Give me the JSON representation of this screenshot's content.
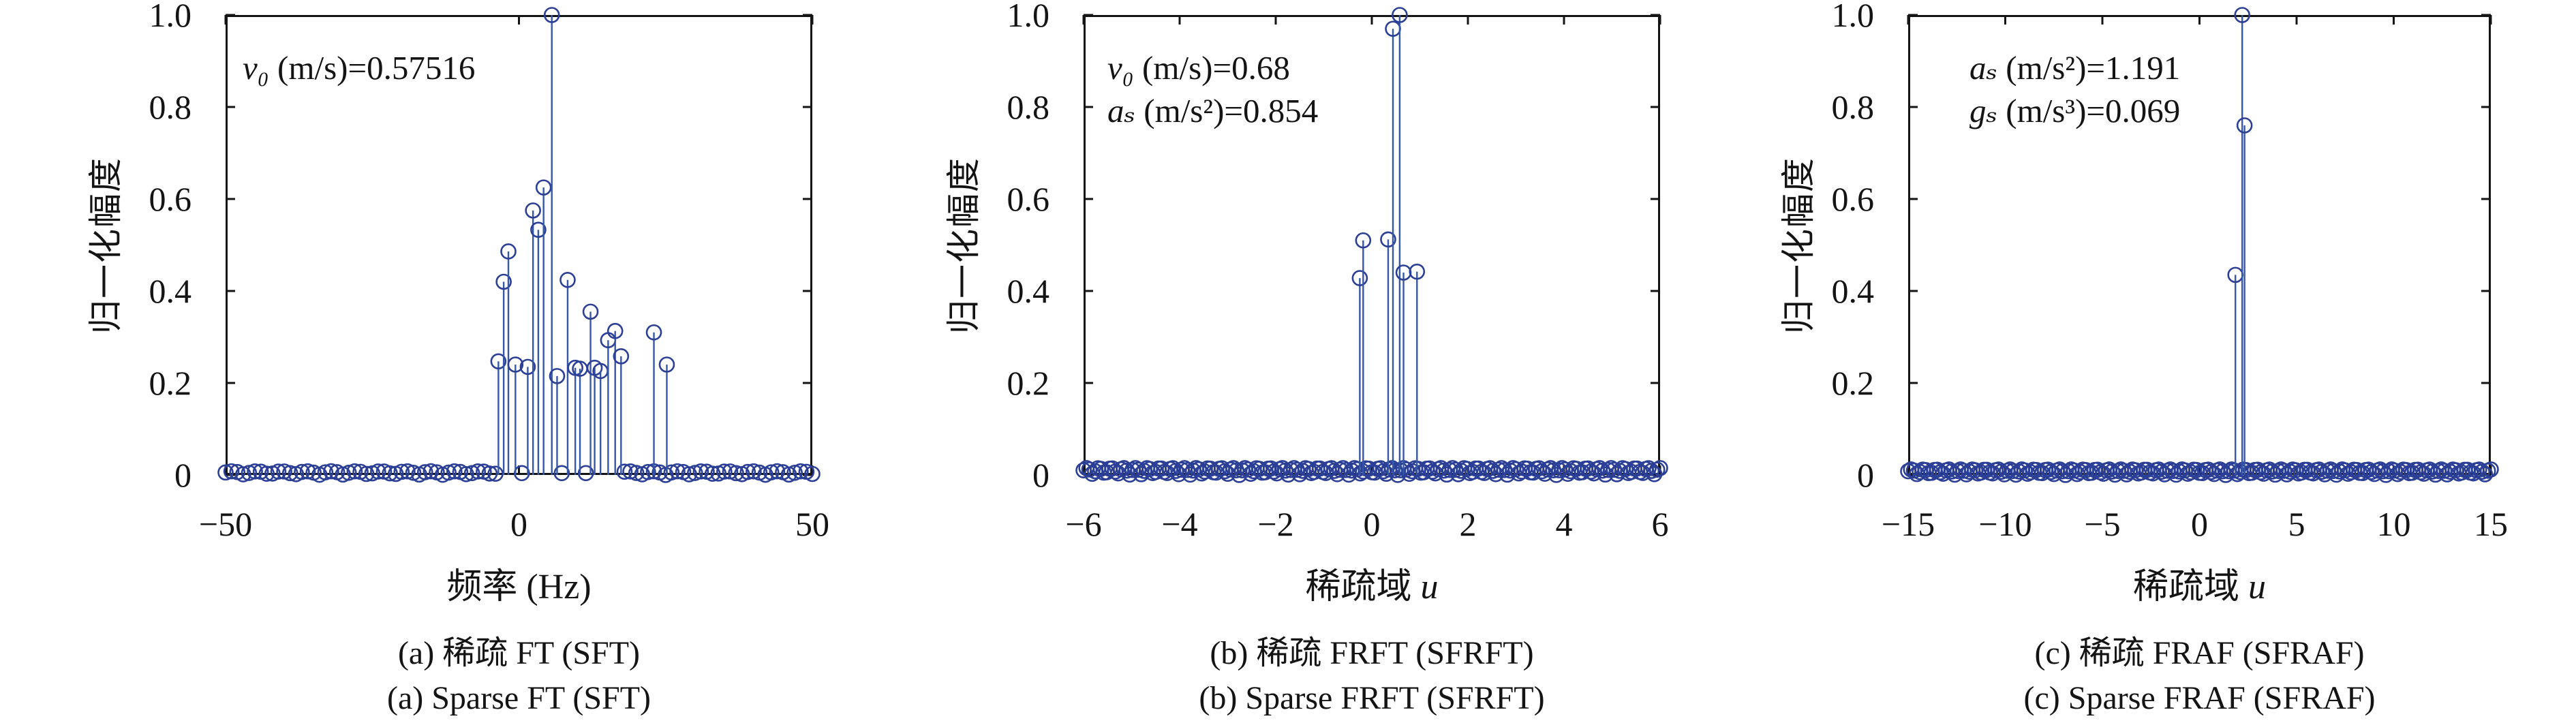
{
  "style": {
    "background": "#ffffff",
    "axis_color": "#141414",
    "text_color": "#141414",
    "stem_color": "#3656a8",
    "marker_color": "#2b3f97"
  },
  "chart_data": [
    {
      "id": "a",
      "type": "stem",
      "title_cn": "(a) 稀疏 FT (SFT)",
      "title_en": "(a) Sparse FT (SFT)",
      "xlabel": {
        "text": "频率 (Hz)",
        "var": ""
      },
      "ylabel": "归一化幅度",
      "xlim": [
        -50,
        50
      ],
      "ylim": [
        0,
        1.0
      ],
      "grid": false,
      "annotation": [
        {
          "var": "v₀",
          "rest": " (m/s)=0.57516"
        }
      ],
      "x_ticks": [
        {
          "v": -50,
          "label": "−50"
        },
        {
          "v": 0,
          "label": "0"
        },
        {
          "v": 50,
          "label": "50"
        }
      ],
      "y_ticks": [
        {
          "v": 1.0,
          "label": "1.0"
        },
        {
          "v": 0.8,
          "label": "0.8"
        },
        {
          "v": 0.6,
          "label": "0.6"
        },
        {
          "v": 0.4,
          "label": "0.4"
        },
        {
          "v": 0.2,
          "label": "0.2"
        },
        {
          "v": 0.0,
          "label": "0"
        }
      ],
      "stems": [
        [
          -3.5,
          0.247
        ],
        [
          -2.6,
          0.42
        ],
        [
          -1.8,
          0.486
        ],
        [
          -0.6,
          0.24
        ],
        [
          1.5,
          0.235
        ],
        [
          2.4,
          0.575
        ],
        [
          3.3,
          0.533
        ],
        [
          4.2,
          0.625
        ],
        [
          5.6,
          1.0
        ],
        [
          6.5,
          0.215
        ],
        [
          8.3,
          0.424
        ],
        [
          9.6,
          0.233
        ],
        [
          10.4,
          0.231
        ],
        [
          12.2,
          0.355
        ],
        [
          12.9,
          0.233
        ],
        [
          13.9,
          0.226
        ],
        [
          15.2,
          0.293
        ],
        [
          16.4,
          0.313
        ],
        [
          17.4,
          0.258
        ],
        [
          23.0,
          0.31
        ],
        [
          25.2,
          0.24
        ]
      ],
      "baseline": {
        "segments": [
          [
            -50,
            -4,
            1
          ],
          [
            18,
            50,
            1
          ]
        ],
        "points": [
          0.5,
          7.3,
          11.4
        ],
        "jitter": 0.008
      }
    },
    {
      "id": "b",
      "type": "stem",
      "title_cn": "(b) 稀疏 FRFT (SFRFT)",
      "title_en": "(b) Sparse FRFT (SFRFT)",
      "xlabel": {
        "text": "稀疏域 ",
        "var": "u"
      },
      "ylabel": "归一化幅度",
      "xlim": [
        -6,
        6
      ],
      "ylim": [
        0,
        1.0
      ],
      "grid": false,
      "annotation": [
        {
          "var": "v₀",
          "rest": " (m/s)=0.68"
        },
        {
          "var": "aₛ",
          "rest": " (m/s²)=0.854"
        }
      ],
      "x_ticks": [
        {
          "v": -6,
          "label": "−6"
        },
        {
          "v": -4,
          "label": "−4"
        },
        {
          "v": -2,
          "label": "−2"
        },
        {
          "v": 0,
          "label": "0"
        },
        {
          "v": 2,
          "label": "2"
        },
        {
          "v": 4,
          "label": "4"
        },
        {
          "v": 6,
          "label": "6"
        }
      ],
      "y_ticks": [
        {
          "v": 1.0,
          "label": "1.0"
        },
        {
          "v": 0.8,
          "label": "0.8"
        },
        {
          "v": 0.6,
          "label": "0.6"
        },
        {
          "v": 0.4,
          "label": "0.4"
        },
        {
          "v": 0.2,
          "label": "0.2"
        },
        {
          "v": 0.0,
          "label": "0"
        }
      ],
      "stems": [
        [
          -0.25,
          0.428
        ],
        [
          -0.18,
          0.51
        ],
        [
          0.34,
          0.512
        ],
        [
          0.44,
          0.97
        ],
        [
          0.58,
          1.0
        ],
        [
          0.66,
          0.44
        ],
        [
          0.94,
          0.442
        ]
      ],
      "baseline": {
        "segments": [
          [
            -6,
            6,
            0.06
          ]
        ],
        "points": [],
        "jitter": 0.015
      }
    },
    {
      "id": "c",
      "type": "stem",
      "title_cn": "(c) 稀疏 FRAF (SFRAF)",
      "title_en": "(c) Sparse FRAF (SFRAF)",
      "xlabel": {
        "text": "稀疏域 ",
        "var": "u"
      },
      "ylabel": "归一化幅度",
      "xlim": [
        -15,
        15
      ],
      "ylim": [
        0,
        1.0
      ],
      "grid": false,
      "annotation": [
        {
          "var": "aₛ",
          "rest": " (m/s²)=1.191"
        },
        {
          "var": "gₛ",
          "rest": " (m/s³)=0.069"
        }
      ],
      "x_ticks": [
        {
          "v": -15,
          "label": "−15"
        },
        {
          "v": -10,
          "label": "−10"
        },
        {
          "v": -5,
          "label": "−5"
        },
        {
          "v": 0,
          "label": "0"
        },
        {
          "v": 5,
          "label": "5"
        },
        {
          "v": 10,
          "label": "10"
        },
        {
          "v": 15,
          "label": "15"
        }
      ],
      "y_ticks": [
        {
          "v": 1.0,
          "label": "1.0"
        },
        {
          "v": 0.8,
          "label": "0.8"
        },
        {
          "v": 0.6,
          "label": "0.6"
        },
        {
          "v": 0.4,
          "label": "0.4"
        },
        {
          "v": 0.2,
          "label": "0.2"
        },
        {
          "v": 0.0,
          "label": "0"
        }
      ],
      "stems": [
        [
          1.85,
          0.435
        ],
        [
          2.2,
          1.0
        ],
        [
          2.32,
          0.76
        ]
      ],
      "baseline": {
        "segments": [
          [
            -15,
            15,
            0.15
          ]
        ],
        "points": [],
        "jitter": 0.012
      }
    }
  ]
}
